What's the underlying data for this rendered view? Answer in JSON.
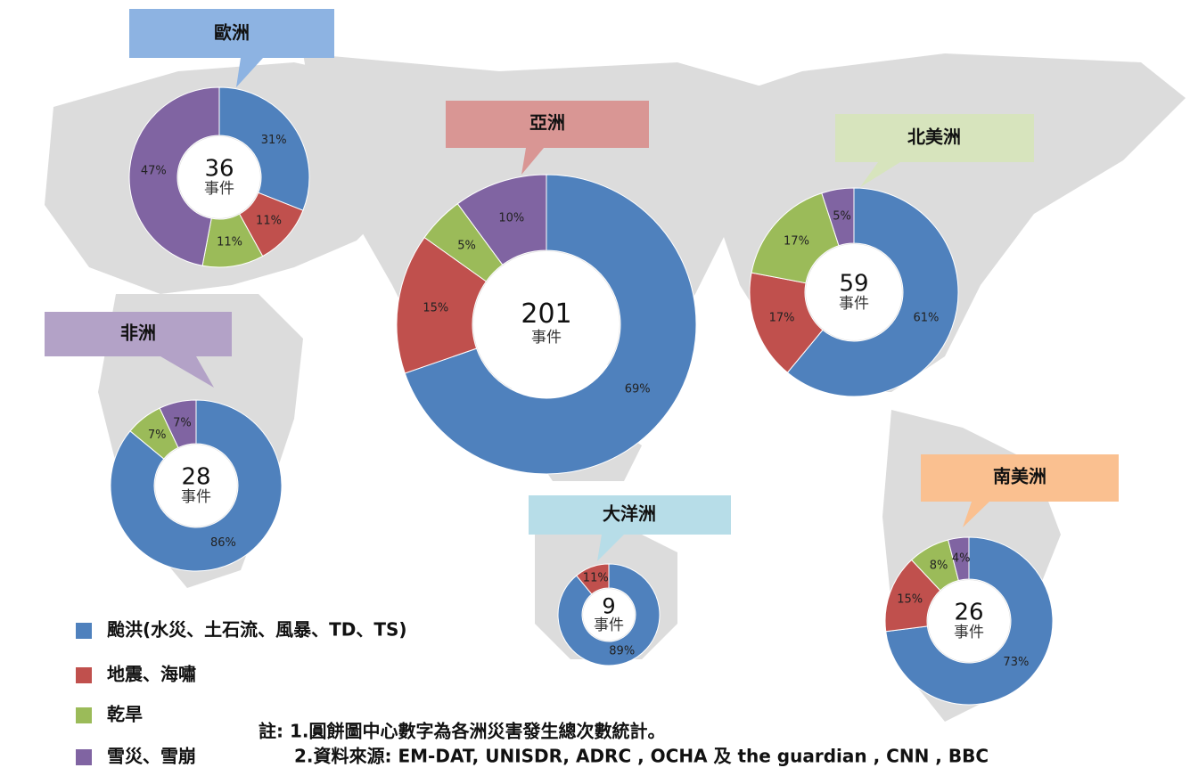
{
  "legend": {
    "categories": [
      "颱洪(水災、土石流、風暴、TD、TS)",
      "地震、海嘯",
      "乾旱",
      "雪災、雪崩"
    ],
    "colors": [
      "#4f81bd",
      "#c0504d",
      "#9bbb59",
      "#8064a2"
    ]
  },
  "chart_data": [
    {
      "type": "donut",
      "title": "歐洲",
      "total": 36,
      "center_label": "事件",
      "values": [
        31,
        11,
        11,
        47
      ],
      "value_labels": [
        "31%",
        "11%",
        "11%",
        "47%"
      ],
      "title_color": "#8db3e2"
    },
    {
      "type": "donut",
      "title": "亞洲",
      "total": 201,
      "center_label": "事件",
      "values": [
        69,
        15,
        5,
        10
      ],
      "value_labels": [
        "69%",
        "15%",
        "5%",
        "10%"
      ],
      "title_color": "#d99694"
    },
    {
      "type": "donut",
      "title": "北美洲",
      "total": 59,
      "center_label": "事件",
      "values": [
        61,
        17,
        17,
        5
      ],
      "value_labels": [
        "61%",
        "17%",
        "17%",
        "5%"
      ],
      "title_color": "#d7e4bd"
    },
    {
      "type": "donut",
      "title": "非洲",
      "total": 28,
      "center_label": "事件",
      "values": [
        86,
        null,
        7,
        7
      ],
      "value_labels": [
        "86%",
        null,
        "7%",
        "7%"
      ],
      "title_color": "#b3a2c7"
    },
    {
      "type": "donut",
      "title": "大洋洲",
      "total": 9,
      "center_label": "事件",
      "values": [
        89,
        11,
        null,
        null
      ],
      "value_labels": [
        "89%",
        "11%",
        null,
        null
      ],
      "title_color": "#b7dde8"
    },
    {
      "type": "donut",
      "title": "南美洲",
      "total": 26,
      "center_label": "事件",
      "values": [
        73,
        15,
        8,
        4
      ],
      "value_labels": [
        "73%",
        "15%",
        "8%",
        "4%"
      ],
      "title_color": "#fac090"
    }
  ],
  "notes": [
    "註: 1.圓餅圖中心數字為各洲災害發生總次數統計。",
    "2.資料來源: EM-DAT, UNISDR, ADRC , OCHA 及 the guardian , CNN , BBC"
  ]
}
